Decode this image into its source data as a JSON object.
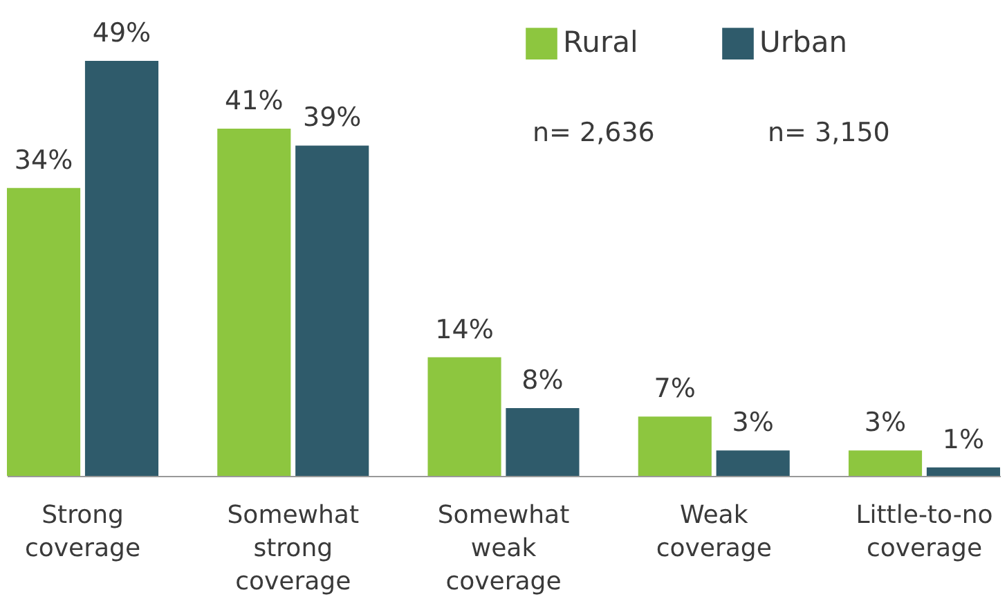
{
  "chart_data": {
    "type": "bar",
    "categories": [
      "Strong coverage",
      "Somewhat strong coverage",
      "Somewhat weak coverage",
      "Weak coverage",
      "Little-to-no coverage"
    ],
    "series": [
      {
        "name": "Rural",
        "color": "#8dc63f",
        "values": [
          34,
          41,
          14,
          7,
          3
        ],
        "value_labels": [
          "34%",
          "41%",
          "14%",
          "7%",
          "3%"
        ]
      },
      {
        "name": "Urban",
        "color": "#2f5b6b",
        "values": [
          49,
          39,
          8,
          3,
          1
        ],
        "value_labels": [
          "49%",
          "39%",
          "8%",
          "3%",
          "1%"
        ]
      }
    ],
    "legend": "top right",
    "annotations": [
      "n= 2,636",
      "n= 3,150"
    ]
  }
}
